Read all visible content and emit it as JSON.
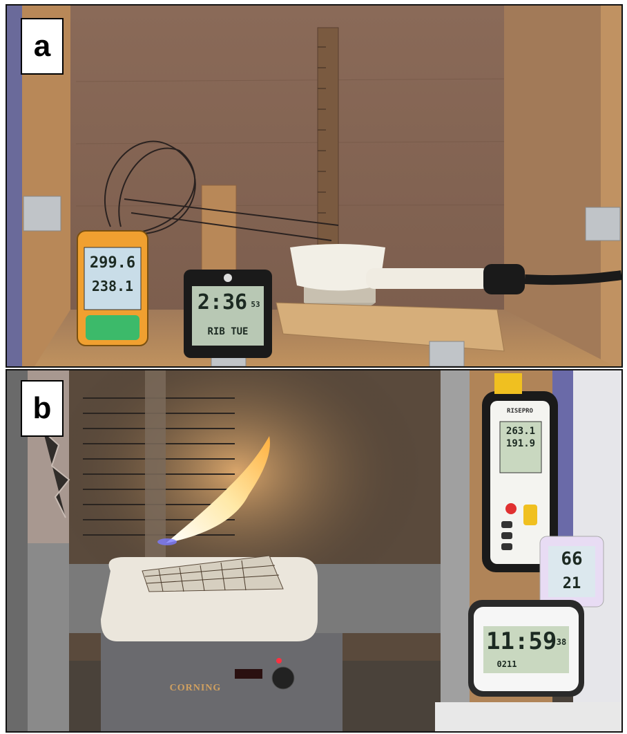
{
  "panels": [
    {
      "label": "a",
      "thermometer": {
        "reading_1": "299.6",
        "reading_2": "238.1"
      },
      "clock": {
        "time": "2:36",
        "seconds": "53",
        "date": "RIB TUE"
      }
    },
    {
      "label": "b",
      "thermocouple_meter": {
        "reading_1": "263.1",
        "reading_2": "191.9",
        "brand": "RISEPRO"
      },
      "hygrometer": {
        "humidity": "66",
        "temperature": "21"
      },
      "clock": {
        "time": "11:59",
        "seconds": "38",
        "date": "0211"
      },
      "hotplate_brand": "CORNING"
    }
  ],
  "colors": {
    "wood": "#b8895a",
    "wood_dark": "#7a5a44",
    "flame": "#ffe9a8",
    "meter_orange": "#f0a030",
    "lcd_green": "#c9d8c0"
  }
}
